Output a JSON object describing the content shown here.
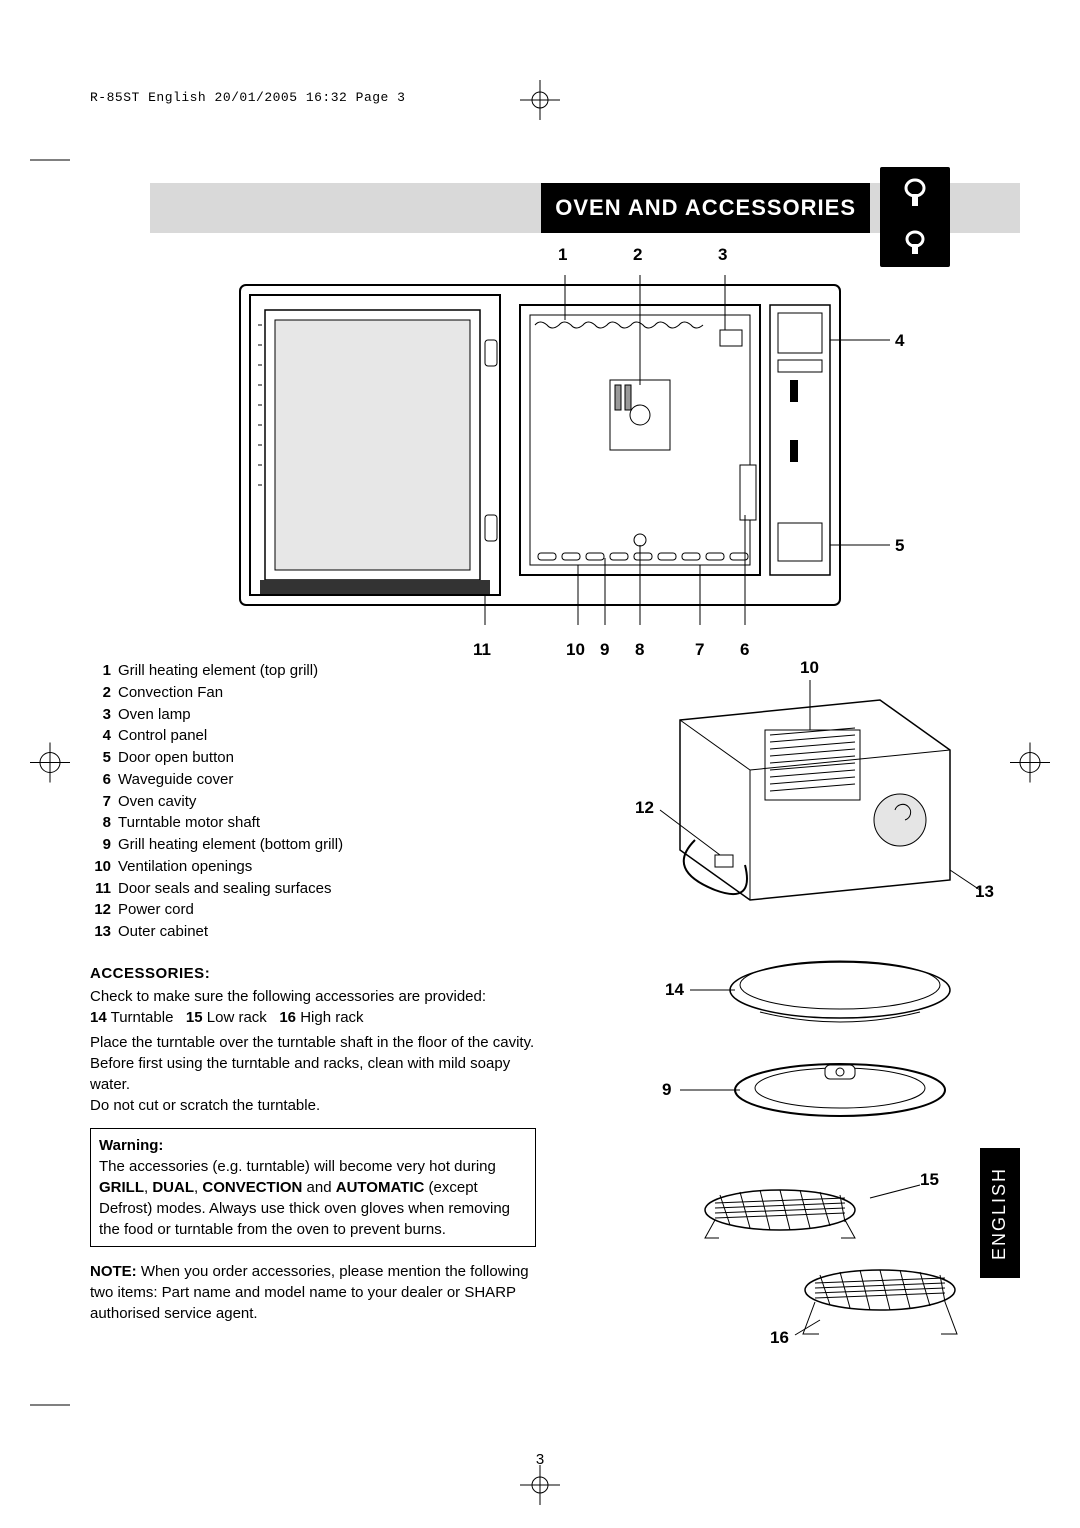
{
  "header": "R-85ST English  20/01/2005  16:32  Page 3",
  "title": "OVEN AND ACCESSORIES",
  "front_top": {
    "c1": "1",
    "c2": "2",
    "c3": "3"
  },
  "front_right": {
    "c4": "4",
    "c5": "5"
  },
  "front_bottom": {
    "c11": "11",
    "c10": "10",
    "c9": "9",
    "c8": "8",
    "c7": "7",
    "c6": "6"
  },
  "parts": [
    {
      "n": "1",
      "t": "Grill heating element (top grill)"
    },
    {
      "n": "2",
      "t": "Convection Fan"
    },
    {
      "n": "3",
      "t": "Oven lamp"
    },
    {
      "n": "4",
      "t": "Control panel"
    },
    {
      "n": "5",
      "t": "Door open button"
    },
    {
      "n": "6",
      "t": "Waveguide cover"
    },
    {
      "n": "7",
      "t": "Oven cavity"
    },
    {
      "n": "8",
      "t": "Turntable motor shaft"
    },
    {
      "n": "9",
      "t": "Grill heating element (bottom grill)"
    },
    {
      "n": "10",
      "t": "Ventilation openings"
    },
    {
      "n": "11",
      "t": "Door seals and sealing surfaces"
    },
    {
      "n": "12",
      "t": "Power cord"
    },
    {
      "n": "13",
      "t": "Outer cabinet"
    }
  ],
  "back": {
    "c10": "10",
    "c12": "12",
    "c13": "13"
  },
  "acc_head": "ACCESSORIES:",
  "acc_body1": "Check to make sure the following accessories are provided:",
  "acc_inline": {
    "n14": "14",
    "t14": "Turntable",
    "n15": "15",
    "t15": "Low rack",
    "n16": "16",
    "t16": "High rack"
  },
  "acc_body2": "Place the turntable over the turntable shaft in the floor of the cavity.",
  "acc_body3": "Before first using the turntable and racks, clean with mild soapy water.",
  "acc_body4": "Do not cut or scratch the turntable.",
  "warn_head": "Warning:",
  "warn_body_pre": "The accessories (e.g. turntable) will become very hot during ",
  "warn_bold1": "GRILL",
  "warn_sep1": ", ",
  "warn_bold2": "DUAL",
  "warn_sep2": ", ",
  "warn_bold3": "CONVECTION",
  "warn_mid": " and ",
  "warn_bold4": "AUTOMATIC",
  "warn_body_post": " (except Defrost) modes. Always use thick oven gloves when removing the food or turntable from the oven to prevent burns.",
  "note_bold": "NOTE:",
  "note_body": " When you order accessories, please mention the following two items: Part name and model name to your dealer or SHARP authorised service agent.",
  "acc_labels": {
    "c14": "14",
    "c9": "9",
    "c15": "15",
    "c16": "16"
  },
  "page_num": "3",
  "lang_tab": "ENGLISH",
  "colors": {
    "gray": "#d9d9d9",
    "black": "#000000"
  }
}
